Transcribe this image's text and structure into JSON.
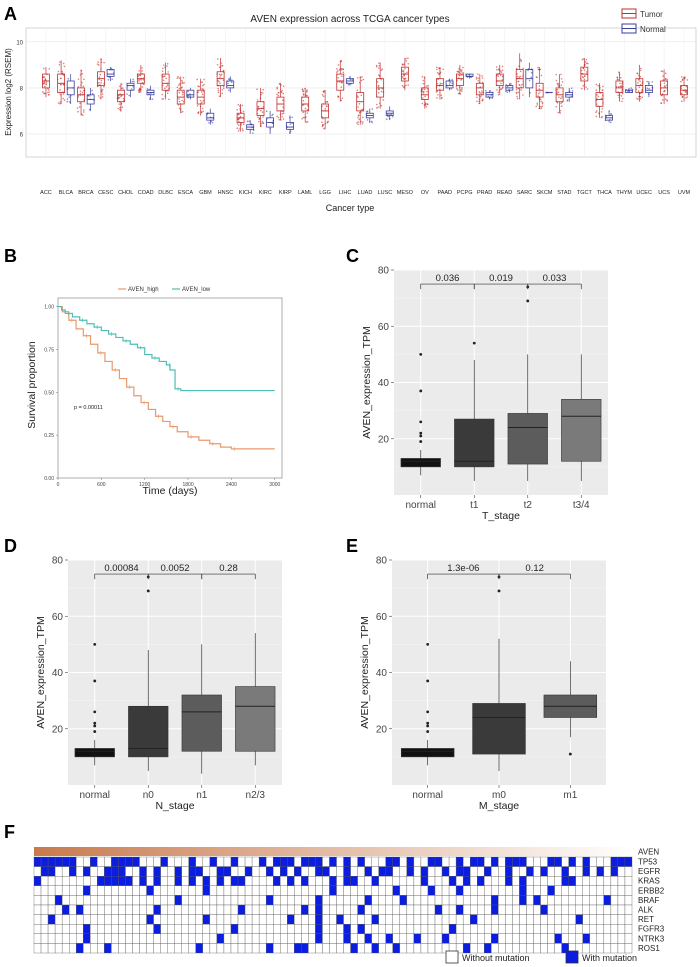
{
  "panels": {
    "a": "A",
    "b": "B",
    "c": "C",
    "d": "D",
    "e": "E",
    "f": "F"
  },
  "colors": {
    "tumor": "#c0302e",
    "normal": "#3b3fa0",
    "km_high": "#e89a6c",
    "km_low": "#4dbfb8",
    "mutation": "#0a1de0",
    "gradient_start": "#c87a4e",
    "gradient_end": "#ffffff",
    "box_fills": [
      "#111111",
      "#3a3a3a",
      "#5c5c5c",
      "#7a7a7a"
    ],
    "panel_bg": "#ebebeb"
  },
  "chart_data": [
    {
      "id": "A",
      "type": "box",
      "title": "AVEN expression across TCGA cancer types",
      "xlabel": "Cancer type",
      "ylabel": "Expression log2 (RSEM)",
      "ylim": [
        5,
        10.6
      ],
      "yticks": [
        6,
        8,
        10
      ],
      "legend": {
        "position": "top-right",
        "entries": [
          "Tumor",
          "Normal"
        ]
      },
      "categories": [
        "ACC",
        "BLCA",
        "BRCA",
        "CESC",
        "CHOL",
        "COAD",
        "DLBC",
        "ESCA",
        "GBM",
        "HNSC",
        "KICH",
        "KIRC",
        "KIRP",
        "LAML",
        "LGG",
        "LIHC",
        "LUAD",
        "LUSC",
        "MESO",
        "OV",
        "PAAD",
        "PCPG",
        "PRAD",
        "READ",
        "SARC",
        "SKCM",
        "STAD",
        "TGCT",
        "THCA",
        "THYM",
        "UCEC",
        "UCS",
        "UVM"
      ],
      "series": [
        {
          "name": "Tumor",
          "values": [
            [
              7.6,
              8.0,
              8.3,
              8.6,
              8.9
            ],
            [
              7.3,
              7.8,
              8.2,
              8.6,
              9.2
            ],
            [
              6.8,
              7.4,
              7.7,
              8.0,
              8.8
            ],
            [
              7.5,
              8.1,
              8.4,
              8.7,
              9.3
            ],
            [
              7.0,
              7.4,
              7.7,
              7.9,
              8.2
            ],
            [
              7.8,
              8.2,
              8.4,
              8.6,
              9.0
            ],
            [
              7.5,
              7.9,
              8.2,
              8.6,
              9.1
            ],
            [
              6.9,
              7.3,
              7.6,
              7.9,
              8.5
            ],
            [
              6.8,
              7.3,
              7.6,
              7.9,
              8.4
            ],
            [
              7.6,
              8.1,
              8.4,
              8.7,
              9.3
            ],
            [
              6.1,
              6.5,
              6.7,
              6.9,
              7.3
            ],
            [
              6.3,
              6.8,
              7.1,
              7.4,
              8.0
            ],
            [
              6.6,
              7.0,
              7.3,
              7.6,
              8.2
            ],
            [
              6.5,
              7.0,
              7.3,
              7.6,
              8.0
            ],
            [
              6.2,
              6.7,
              7.0,
              7.3,
              7.9
            ],
            [
              7.4,
              7.9,
              8.3,
              8.6,
              9.2
            ],
            [
              6.4,
              7.0,
              7.4,
              7.8,
              8.5
            ],
            [
              7.1,
              7.6,
              8.0,
              8.4,
              9.1
            ],
            [
              7.9,
              8.3,
              8.6,
              8.9,
              9.3
            ],
            [
              7.1,
              7.5,
              7.7,
              8.0,
              8.5
            ],
            [
              7.5,
              7.9,
              8.1,
              8.4,
              8.9
            ],
            [
              7.7,
              8.1,
              8.4,
              8.6,
              9.0
            ],
            [
              7.3,
              7.7,
              8.0,
              8.2,
              8.6
            ],
            [
              7.7,
              8.1,
              8.3,
              8.6,
              9.0
            ],
            [
              7.5,
              8.0,
              8.4,
              8.8,
              9.5
            ],
            [
              7.1,
              7.6,
              7.9,
              8.2,
              8.9
            ],
            [
              6.9,
              7.4,
              7.7,
              8.0,
              8.6
            ],
            [
              7.9,
              8.3,
              8.6,
              8.9,
              9.3
            ],
            [
              6.7,
              7.2,
              7.5,
              7.8,
              8.2
            ],
            [
              7.4,
              7.8,
              8.0,
              8.3,
              8.7
            ],
            [
              7.4,
              7.8,
              8.1,
              8.4,
              9.0
            ],
            [
              7.3,
              7.7,
              8.0,
              8.3,
              8.8
            ],
            [
              7.4,
              7.7,
              7.9,
              8.1,
              8.5
            ]
          ]
        },
        {
          "name": "Normal",
          "values": [
            null,
            [
              7.3,
              7.7,
              8.0,
              8.3,
              8.6
            ],
            [
              7.0,
              7.3,
              7.5,
              7.7,
              8.0
            ],
            [
              8.3,
              8.5,
              8.6,
              8.8,
              8.9
            ],
            [
              7.6,
              7.9,
              8.1,
              8.2,
              8.4
            ],
            [
              7.5,
              7.7,
              7.8,
              7.9,
              8.1
            ],
            null,
            [
              7.5,
              7.6,
              7.7,
              7.9,
              8.0
            ],
            [
              6.4,
              6.6,
              6.7,
              6.9,
              7.1
            ],
            [
              7.8,
              8.0,
              8.1,
              8.3,
              8.5
            ],
            [
              6.0,
              6.2,
              6.3,
              6.4,
              6.6
            ],
            [
              6.0,
              6.3,
              6.5,
              6.7,
              7.0
            ],
            [
              6.0,
              6.2,
              6.3,
              6.5,
              6.8
            ],
            null,
            null,
            [
              8.1,
              8.2,
              8.3,
              8.4,
              8.5
            ],
            [
              6.5,
              6.7,
              6.8,
              6.9,
              7.1
            ],
            [
              6.6,
              6.8,
              6.9,
              7.0,
              7.2
            ],
            null,
            null,
            [
              7.9,
              8.0,
              8.1,
              8.3,
              8.4
            ],
            [
              8.4,
              8.5,
              8.5,
              8.6,
              8.6
            ],
            [
              7.5,
              7.6,
              7.7,
              7.8,
              7.9
            ],
            [
              7.8,
              7.9,
              8.0,
              8.1,
              8.2
            ],
            [
              7.6,
              8.0,
              8.4,
              8.8,
              9.1
            ],
            [
              7.8,
              7.8,
              7.8,
              7.8,
              7.8
            ],
            [
              7.4,
              7.6,
              7.7,
              7.8,
              8.0
            ],
            null,
            [
              6.5,
              6.6,
              6.7,
              6.8,
              7.0
            ],
            [
              7.8,
              7.8,
              7.9,
              7.9,
              8.0
            ],
            [
              7.6,
              7.8,
              7.9,
              8.1,
              8.3
            ],
            null,
            null
          ]
        }
      ]
    },
    {
      "id": "B",
      "type": "line",
      "subtype": "kaplan-meier",
      "xlabel": "Time (days)",
      "ylabel": "Survival proportion",
      "xlim": [
        0,
        3100
      ],
      "ylim": [
        0,
        1.05
      ],
      "xticks": [
        0,
        600,
        1200,
        1800,
        2400,
        3000
      ],
      "yticks": [
        0.0,
        0.25,
        0.5,
        0.75,
        1.0
      ],
      "ytick_labels": [
        "0.00",
        "0.25",
        "0.50",
        "0.75",
        "1.00"
      ],
      "annotation": "p = 0.00011",
      "series": [
        {
          "name": "AVEN_high",
          "x": [
            0,
            60,
            150,
            250,
            350,
            450,
            550,
            650,
            750,
            850,
            950,
            1050,
            1150,
            1250,
            1350,
            1450,
            1550,
            1650,
            1800,
            1950,
            2100,
            2250,
            2400,
            3000
          ],
          "y": [
            1.0,
            0.97,
            0.92,
            0.87,
            0.83,
            0.78,
            0.73,
            0.68,
            0.63,
            0.58,
            0.53,
            0.48,
            0.44,
            0.4,
            0.36,
            0.33,
            0.3,
            0.27,
            0.24,
            0.22,
            0.2,
            0.18,
            0.17,
            0.17
          ]
        },
        {
          "name": "AVEN_low",
          "x": [
            0,
            50,
            100,
            200,
            300,
            400,
            500,
            600,
            700,
            800,
            900,
            1000,
            1100,
            1200,
            1300,
            1400,
            1500,
            1550,
            1620,
            1700,
            3000
          ],
          "y": [
            1.0,
            0.98,
            0.96,
            0.94,
            0.92,
            0.9,
            0.88,
            0.86,
            0.84,
            0.82,
            0.8,
            0.78,
            0.76,
            0.72,
            0.7,
            0.68,
            0.66,
            0.63,
            0.52,
            0.51,
            0.51
          ]
        }
      ]
    },
    {
      "id": "C",
      "type": "box",
      "xlabel": "T_stage",
      "ylabel": "AVEN_expression_TPM",
      "ylim": [
        0,
        80
      ],
      "yticks": [
        20,
        40,
        60,
        80
      ],
      "categories": [
        "normal",
        "t1",
        "t2",
        "t3/4"
      ],
      "values": [
        [
          7,
          10,
          12,
          13,
          16
        ],
        [
          5,
          10,
          12,
          27,
          48
        ],
        [
          5,
          11,
          24,
          29,
          50
        ],
        [
          5,
          12,
          28,
          34,
          50
        ]
      ],
      "outliers": [
        [
          19,
          21,
          22,
          26,
          37,
          50
        ],
        [
          54
        ],
        [
          69,
          74
        ],
        []
      ],
      "comparisons": [
        {
          "pair": [
            "normal",
            "t1"
          ],
          "p": "0.036"
        },
        {
          "pair": [
            "t1",
            "t2"
          ],
          "p": "0.019"
        },
        {
          "pair": [
            "t2",
            "t3/4"
          ],
          "p": "0.033"
        }
      ]
    },
    {
      "id": "D",
      "type": "box",
      "xlabel": "N_stage",
      "ylabel": "AVEN_expression_TPM",
      "ylim": [
        0,
        80
      ],
      "yticks": [
        20,
        40,
        60,
        80
      ],
      "categories": [
        "normal",
        "n0",
        "n1",
        "n2/3"
      ],
      "values": [
        [
          7,
          10,
          12,
          13,
          16
        ],
        [
          5,
          10,
          13,
          28,
          48
        ],
        [
          4,
          12,
          26,
          32,
          50
        ],
        [
          7,
          12,
          28,
          35,
          54
        ]
      ],
      "outliers": [
        [
          19,
          21,
          22,
          26,
          37,
          50
        ],
        [
          69,
          74
        ],
        [],
        []
      ],
      "comparisons": [
        {
          "pair": [
            "normal",
            "n0"
          ],
          "p": "0.00084"
        },
        {
          "pair": [
            "n0",
            "n1"
          ],
          "p": "0.0052"
        },
        {
          "pair": [
            "n1",
            "n2/3"
          ],
          "p": "0.28"
        }
      ]
    },
    {
      "id": "E",
      "type": "box",
      "xlabel": "M_stage",
      "ylabel": "AVEN_expression_TPM",
      "ylim": [
        0,
        80
      ],
      "yticks": [
        20,
        40,
        60,
        80
      ],
      "categories": [
        "normal",
        "m0",
        "m1"
      ],
      "values": [
        [
          7,
          10,
          12,
          13,
          16
        ],
        [
          5,
          11,
          24,
          29,
          52
        ],
        [
          17,
          24,
          28,
          32,
          44
        ]
      ],
      "outliers": [
        [
          19,
          21,
          22,
          26,
          37,
          50
        ],
        [
          69,
          74
        ],
        [
          11
        ]
      ],
      "comparisons": [
        {
          "pair": [
            "normal",
            "m0"
          ],
          "p": "1.3e-06"
        },
        {
          "pair": [
            "m0",
            "m1"
          ],
          "p": "0.12"
        }
      ]
    },
    {
      "id": "F",
      "type": "heatmap",
      "gradient_label": "AVEN",
      "rows": [
        "TP53",
        "EGFR",
        "KRAS",
        "ERBB2",
        "BRAF",
        "ALK",
        "RET",
        "FGFR3",
        "NTRK3",
        "ROS1"
      ],
      "n_columns": 85,
      "mutations": [
        [
          0,
          1,
          2,
          3,
          4,
          5,
          8,
          11,
          12,
          13,
          14,
          18,
          22,
          25,
          28,
          32,
          34,
          35,
          36,
          38,
          39,
          40,
          42,
          44,
          46,
          50,
          51,
          53,
          56,
          57,
          60,
          62,
          63,
          65,
          67,
          68,
          69,
          73,
          74,
          76,
          78,
          82,
          83,
          84
        ],
        [
          1,
          2,
          5,
          7,
          10,
          11,
          12,
          15,
          17,
          20,
          22,
          23,
          26,
          27,
          30,
          33,
          35,
          37,
          40,
          41,
          44,
          47,
          49,
          50,
          53,
          55,
          58,
          60,
          61,
          64,
          67,
          70,
          72,
          75,
          78,
          80,
          82
        ],
        [
          0,
          9,
          10,
          11,
          12,
          13,
          15,
          17,
          20,
          22,
          24,
          26,
          28,
          29,
          34,
          36,
          38,
          42,
          44,
          45,
          48,
          55,
          59,
          61,
          63,
          67,
          69,
          75,
          76
        ],
        [
          7,
          16,
          24,
          42,
          51,
          56,
          60,
          69,
          73
        ],
        [
          3,
          20,
          33,
          40,
          47,
          52,
          65,
          69,
          71,
          81
        ],
        [
          4,
          6,
          17,
          29,
          38,
          40,
          46,
          57,
          60,
          65,
          72
        ],
        [
          2,
          16,
          24,
          36,
          40,
          43,
          48,
          62,
          77
        ],
        [
          7,
          17,
          28,
          40,
          44,
          46,
          59
        ],
        [
          7,
          26,
          40,
          44,
          47,
          50,
          54,
          58,
          65,
          74,
          78
        ],
        [
          6,
          10,
          23,
          33,
          37,
          38,
          45,
          48,
          51,
          61,
          64,
          75
        ]
      ],
      "legend": [
        {
          "label": "Without mutation",
          "state": "absent"
        },
        {
          "label": "With mutation",
          "state": "present"
        }
      ]
    }
  ]
}
